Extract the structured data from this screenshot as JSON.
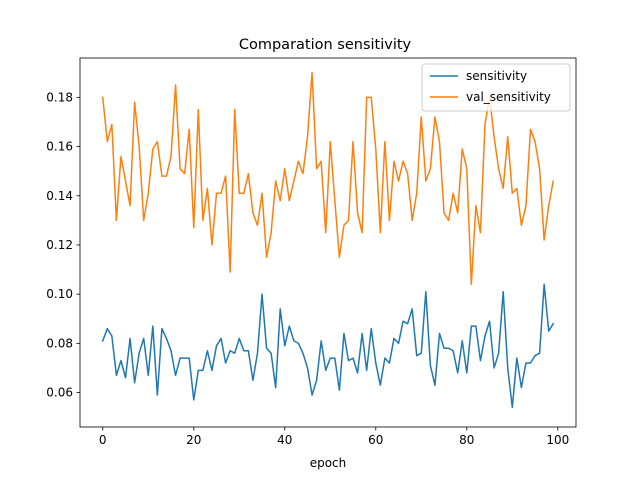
{
  "chart_data": {
    "type": "line",
    "title": "Comparation sensitivity",
    "xlabel": "epoch",
    "ylabel": "",
    "xlim": [
      -5,
      104
    ],
    "ylim": [
      0.046,
      0.196
    ],
    "xticks": [
      0,
      20,
      40,
      60,
      80,
      100
    ],
    "xtick_labels": [
      "0",
      "20",
      "40",
      "60",
      "80",
      "100"
    ],
    "yticks": [
      0.06,
      0.08,
      0.1,
      0.12,
      0.14,
      0.16,
      0.18
    ],
    "ytick_labels": [
      "0.06",
      "0.08",
      "0.10",
      "0.12",
      "0.14",
      "0.16",
      "0.18"
    ],
    "grid": false,
    "legend": "top-right",
    "x": [
      0,
      1,
      2,
      3,
      4,
      5,
      6,
      7,
      8,
      9,
      10,
      11,
      12,
      13,
      14,
      15,
      16,
      17,
      18,
      19,
      20,
      21,
      22,
      23,
      24,
      25,
      26,
      27,
      28,
      29,
      30,
      31,
      32,
      33,
      34,
      35,
      36,
      37,
      38,
      39,
      40,
      41,
      42,
      43,
      44,
      45,
      46,
      47,
      48,
      49,
      50,
      51,
      52,
      53,
      54,
      55,
      56,
      57,
      58,
      59,
      60,
      61,
      62,
      63,
      64,
      65,
      66,
      67,
      68,
      69,
      70,
      71,
      72,
      73,
      74,
      75,
      76,
      77,
      78,
      79,
      80,
      81,
      82,
      83,
      84,
      85,
      86,
      87,
      88,
      89,
      90,
      91,
      92,
      93,
      94,
      95,
      96,
      97,
      98,
      99
    ],
    "series": [
      {
        "name": "sensitivity",
        "color": "#1f77b4",
        "values": [
          0.081,
          0.086,
          0.083,
          0.067,
          0.073,
          0.066,
          0.082,
          0.064,
          0.076,
          0.082,
          0.067,
          0.087,
          0.059,
          0.086,
          0.082,
          0.077,
          0.067,
          0.074,
          0.074,
          0.074,
          0.057,
          0.069,
          0.069,
          0.077,
          0.069,
          0.079,
          0.082,
          0.072,
          0.077,
          0.076,
          0.082,
          0.077,
          0.077,
          0.065,
          0.076,
          0.1,
          0.078,
          0.076,
          0.062,
          0.094,
          0.079,
          0.087,
          0.081,
          0.08,
          0.076,
          0.07,
          0.059,
          0.065,
          0.081,
          0.069,
          0.074,
          0.074,
          0.061,
          0.084,
          0.073,
          0.074,
          0.068,
          0.084,
          0.069,
          0.086,
          0.072,
          0.063,
          0.074,
          0.072,
          0.082,
          0.08,
          0.089,
          0.088,
          0.094,
          0.075,
          0.076,
          0.101,
          0.071,
          0.063,
          0.084,
          0.078,
          0.078,
          0.077,
          0.068,
          0.081,
          0.068,
          0.087,
          0.087,
          0.073,
          0.083,
          0.089,
          0.07,
          0.076,
          0.101,
          0.07,
          0.054,
          0.074,
          0.062,
          0.072,
          0.072,
          0.075,
          0.076,
          0.104,
          0.085,
          0.088
        ]
      },
      {
        "name": "val_sensitivity",
        "color": "#ff7f0e",
        "values": [
          0.18,
          0.162,
          0.169,
          0.13,
          0.156,
          0.146,
          0.136,
          0.178,
          0.16,
          0.13,
          0.141,
          0.159,
          0.162,
          0.148,
          0.148,
          0.156,
          0.185,
          0.151,
          0.149,
          0.167,
          0.127,
          0.175,
          0.13,
          0.143,
          0.12,
          0.141,
          0.141,
          0.148,
          0.109,
          0.175,
          0.141,
          0.141,
          0.149,
          0.133,
          0.128,
          0.141,
          0.115,
          0.125,
          0.146,
          0.138,
          0.151,
          0.138,
          0.146,
          0.154,
          0.149,
          0.164,
          0.19,
          0.151,
          0.154,
          0.125,
          0.162,
          0.138,
          0.115,
          0.128,
          0.13,
          0.162,
          0.133,
          0.125,
          0.18,
          0.18,
          0.159,
          0.125,
          0.162,
          0.13,
          0.154,
          0.146,
          0.154,
          0.149,
          0.13,
          0.141,
          0.172,
          0.146,
          0.151,
          0.172,
          0.162,
          0.133,
          0.13,
          0.141,
          0.133,
          0.159,
          0.151,
          0.104,
          0.136,
          0.125,
          0.169,
          0.18,
          0.164,
          0.151,
          0.143,
          0.164,
          0.141,
          0.143,
          0.128,
          0.136,
          0.167,
          0.162,
          0.151,
          0.122,
          0.136,
          0.146
        ]
      }
    ]
  }
}
